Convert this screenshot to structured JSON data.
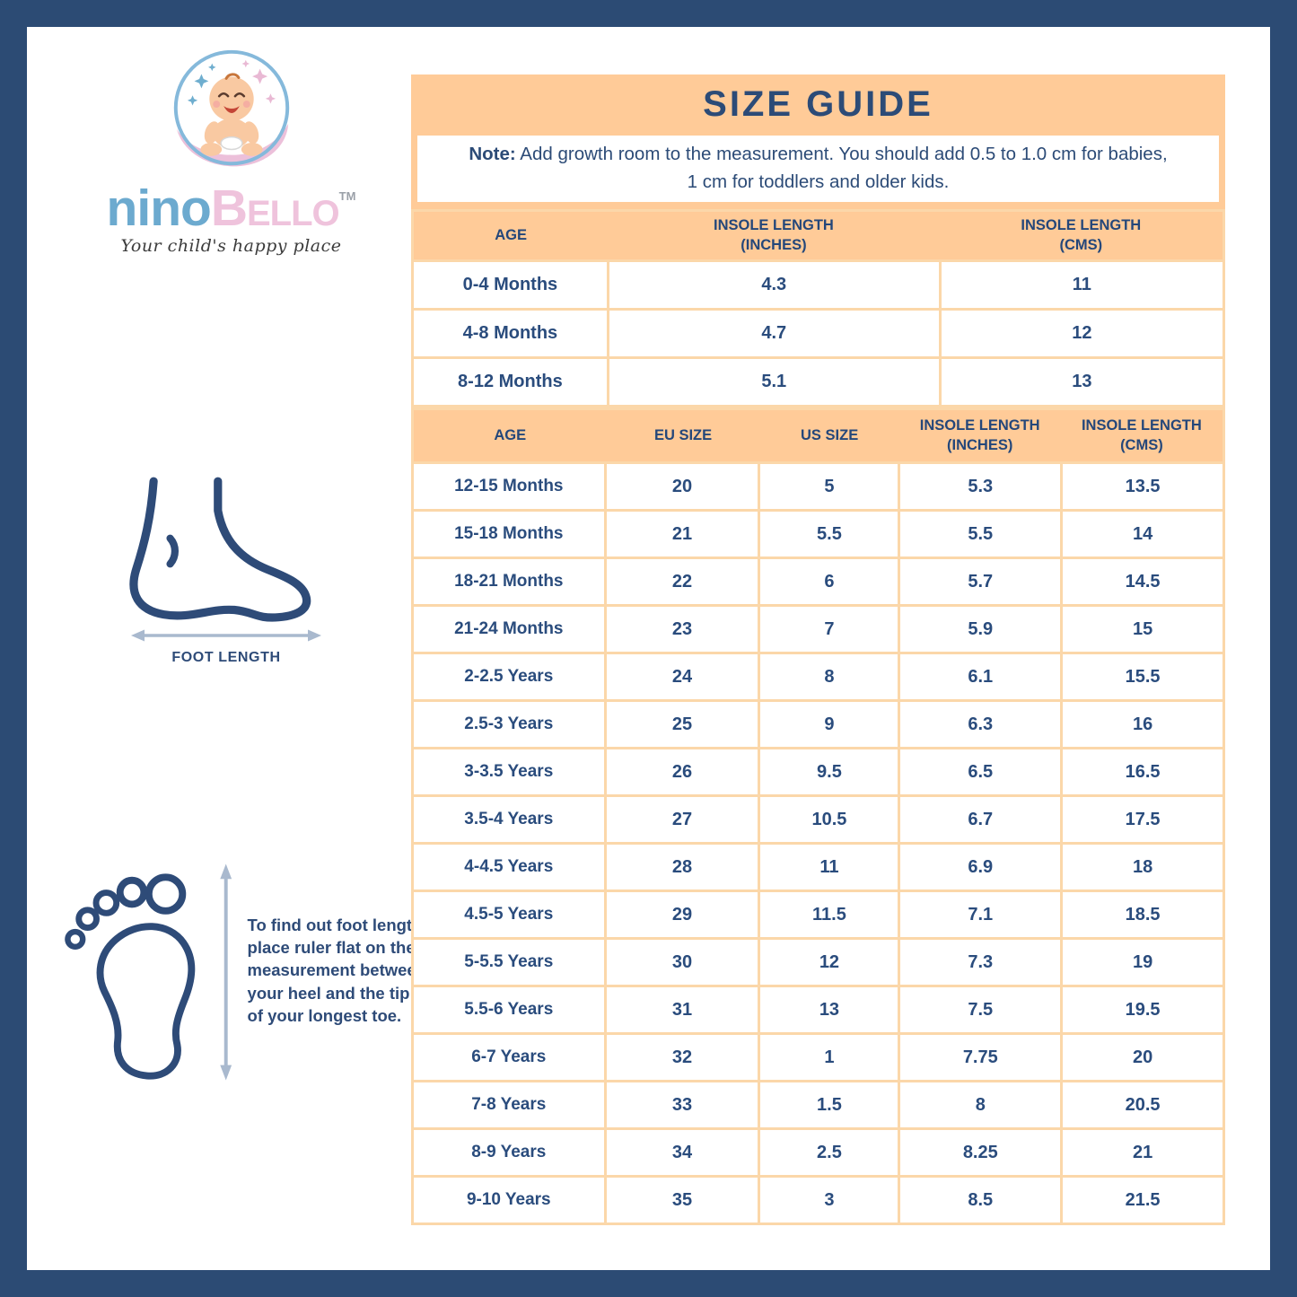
{
  "logo": {
    "brand_first": "nino",
    "brand_second": "Bello",
    "trademark": "TM",
    "tagline": "Your child's happy place"
  },
  "header": {
    "title": "SIZE GUIDE"
  },
  "note": {
    "label": "Note:",
    "text": " Add growth room to the measurement. You should add 0.5 to 1.0 cm for babies, 1 cm for toddlers and older kids."
  },
  "baby_table": {
    "headers": [
      "AGE",
      "INSOLE LENGTH\n(INCHES)",
      "INSOLE LENGTH\n(CMS)"
    ],
    "rows": [
      [
        "0-4 Months",
        "4.3",
        "11"
      ],
      [
        "4-8 Months",
        "4.7",
        "12"
      ],
      [
        "8-12 Months",
        "5.1",
        "13"
      ]
    ]
  },
  "kids_table": {
    "headers": [
      "AGE",
      "EU SIZE",
      "US SIZE",
      "INSOLE LENGTH\n(INCHES)",
      "INSOLE LENGTH\n(CMS)"
    ],
    "rows": [
      [
        "12-15 Months",
        "20",
        "5",
        "5.3",
        "13.5"
      ],
      [
        "15-18 Months",
        "21",
        "5.5",
        "5.5",
        "14"
      ],
      [
        "18-21 Months",
        "22",
        "6",
        "5.7",
        "14.5"
      ],
      [
        "21-24 Months",
        "23",
        "7",
        "5.9",
        "15"
      ],
      [
        "2-2.5 Years",
        "24",
        "8",
        "6.1",
        "15.5"
      ],
      [
        "2.5-3 Years",
        "25",
        "9",
        "6.3",
        "16"
      ],
      [
        "3-3.5 Years",
        "26",
        "9.5",
        "6.5",
        "16.5"
      ],
      [
        "3.5-4 Years",
        "27",
        "10.5",
        "6.7",
        "17.5"
      ],
      [
        "4-4.5 Years",
        "28",
        "11",
        "6.9",
        "18"
      ],
      [
        "4.5-5 Years",
        "29",
        "11.5",
        "7.1",
        "18.5"
      ],
      [
        "5-5.5 Years",
        "30",
        "12",
        "7.3",
        "19"
      ],
      [
        "5.5-6 Years",
        "31",
        "13",
        "7.5",
        "19.5"
      ],
      [
        "6-7 Years",
        "32",
        "1",
        "7.75",
        "20"
      ],
      [
        "7-8 Years",
        "33",
        "1.5",
        "8",
        "20.5"
      ],
      [
        "8-9 Years",
        "34",
        "2.5",
        "8.25",
        "21"
      ],
      [
        "9-10 Years",
        "35",
        "3",
        "8.5",
        "21.5"
      ]
    ]
  },
  "foot_length": {
    "label": "FOOT LENGTH"
  },
  "instruction": {
    "text": "To find out foot length, place ruler flat on the measurement between your heel and the tip of your longest toe."
  },
  "colors": {
    "border_navy": "#2C4B74",
    "band_peach": "#FFCB98",
    "grid_line_peach": "#FBD7A9",
    "text_navy": "#2C4B77",
    "logo_blue": "#6CAACF",
    "logo_pink": "#EFC3DC",
    "arrow_gray": "#A9B9CE",
    "icon_stroke_navy": "#2E4B78"
  }
}
